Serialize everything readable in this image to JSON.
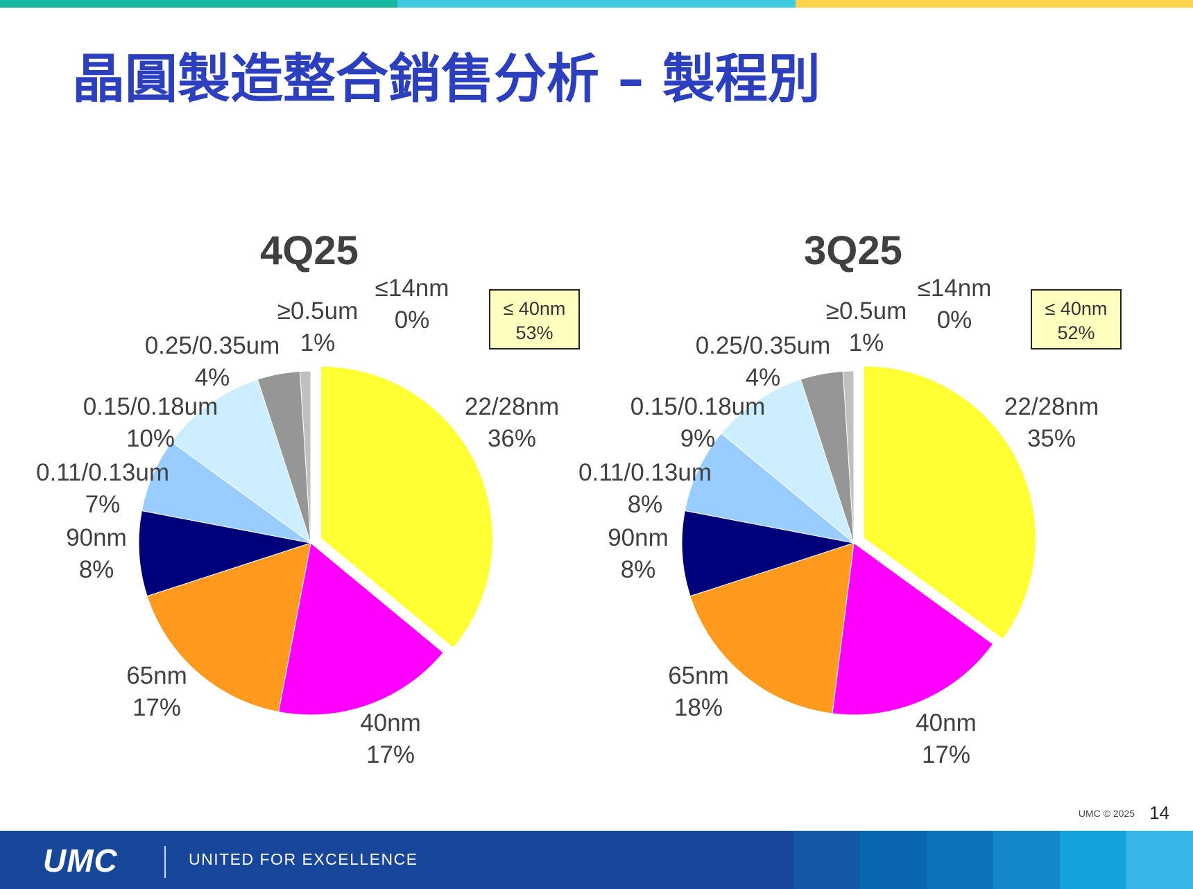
{
  "top_bar_colors": [
    "#14b8a0",
    "#3ecbe0",
    "#ffd24a"
  ],
  "title": "晶圓製造整合銷售分析 – 製程別",
  "chart_data": [
    {
      "type": "pie",
      "title": "4Q25",
      "slices": [
        {
          "label": "22/28nm",
          "value": 36,
          "value_label": "36%",
          "color": "#ffff33",
          "exploded": true
        },
        {
          "label": "40nm",
          "value": 17,
          "value_label": "17%",
          "color": "#ff00ff"
        },
        {
          "label": "65nm",
          "value": 17,
          "value_label": "17%",
          "color": "#ff9a1e"
        },
        {
          "label": "90nm",
          "value": 8,
          "value_label": "8%",
          "color": "#00007a"
        },
        {
          "label": "0.11/0.13um",
          "value": 7,
          "value_label": "7%",
          "color": "#99ccff"
        },
        {
          "label": "0.15/0.18um",
          "value": 10,
          "value_label": "10%",
          "color": "#cceeff"
        },
        {
          "label": "0.25/0.35um",
          "value": 4,
          "value_label": "4%",
          "color": "#969696"
        },
        {
          "label": "≥0.5um",
          "value": 1,
          "value_label": "1%",
          "color": "#c0c0c0"
        },
        {
          "label": "≤14nm",
          "value": 0,
          "value_label": "0%",
          "color": "#e6e6e6"
        }
      ],
      "summary": {
        "label": "≤ 40nm",
        "value_label": "53%"
      }
    },
    {
      "type": "pie",
      "title": "3Q25",
      "slices": [
        {
          "label": "22/28nm",
          "value": 35,
          "value_label": "35%",
          "color": "#ffff33",
          "exploded": true
        },
        {
          "label": "40nm",
          "value": 17,
          "value_label": "17%",
          "color": "#ff00ff"
        },
        {
          "label": "65nm",
          "value": 18,
          "value_label": "18%",
          "color": "#ff9a1e"
        },
        {
          "label": "90nm",
          "value": 8,
          "value_label": "8%",
          "color": "#00007a"
        },
        {
          "label": "0.11/0.13um",
          "value": 8,
          "value_label": "8%",
          "color": "#99ccff"
        },
        {
          "label": "0.15/0.18um",
          "value": 9,
          "value_label": "9%",
          "color": "#cceeff"
        },
        {
          "label": "0.25/0.35um",
          "value": 4,
          "value_label": "4%",
          "color": "#969696"
        },
        {
          "label": "≥0.5um",
          "value": 1,
          "value_label": "1%",
          "color": "#c0c0c0"
        },
        {
          "label": "≤14nm",
          "value": 0,
          "value_label": "0%",
          "color": "#e6e6e6"
        }
      ],
      "summary": {
        "label": "≤ 40nm",
        "value_label": "52%"
      }
    }
  ],
  "footer": {
    "copyright": "UMC © 2025",
    "page_number": "14"
  },
  "brand": {
    "logo_text": "UMC",
    "slogan": "UNITED FOR EXCELLENCE",
    "bar_color": "#17469a",
    "tile_colors": [
      "#1358a6",
      "#0a66b2",
      "#0b74bd",
      "#1487cc",
      "#14a3dc",
      "#38b6e8"
    ]
  }
}
